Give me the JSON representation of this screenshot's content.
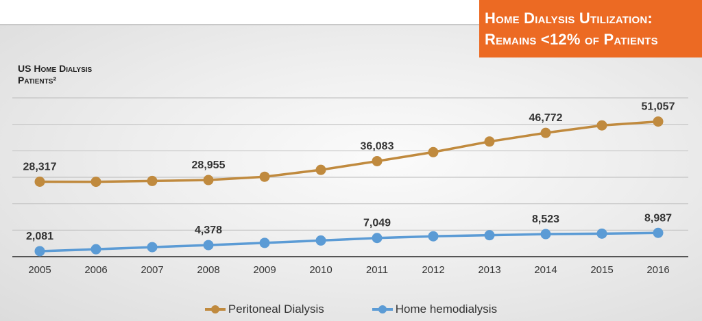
{
  "banner": {
    "line1": "Home Dialysis Utilization:",
    "line2": "Remains <12% of Patients",
    "color": "#ec6a23"
  },
  "ylabel": {
    "line1": "US Home Dialysis",
    "line2": "Patients²"
  },
  "chart_data": {
    "type": "line",
    "title": "Home Dialysis Utilization: Remains <12% of Patients",
    "ylabel": "US Home Dialysis Patients²",
    "xlabel": "",
    "categories": [
      "2005",
      "2006",
      "2007",
      "2008",
      "2009",
      "2010",
      "2011",
      "2012",
      "2013",
      "2014",
      "2015",
      "2016"
    ],
    "ylim": [
      0,
      60000
    ],
    "grid": true,
    "legend_position": "bottom",
    "series": [
      {
        "name": "Peritoneal Dialysis",
        "color": "#c08a3e",
        "values": [
          28317,
          28300,
          28600,
          28955,
          30200,
          32800,
          36083,
          39500,
          43500,
          46772,
          49600,
          51057
        ],
        "labels": {
          "0": "28,317",
          "3": "28,955",
          "6": "36,083",
          "9": "46,772",
          "11": "51,057"
        }
      },
      {
        "name": "Home hemodialysis",
        "color": "#5b9bd5",
        "values": [
          2081,
          2800,
          3600,
          4378,
          5200,
          6100,
          7049,
          7700,
          8100,
          8523,
          8700,
          8987
        ],
        "labels": {
          "0": "2,081",
          "3": "4,378",
          "6": "7,049",
          "9": "8,523",
          "11": "8,987"
        }
      }
    ]
  }
}
